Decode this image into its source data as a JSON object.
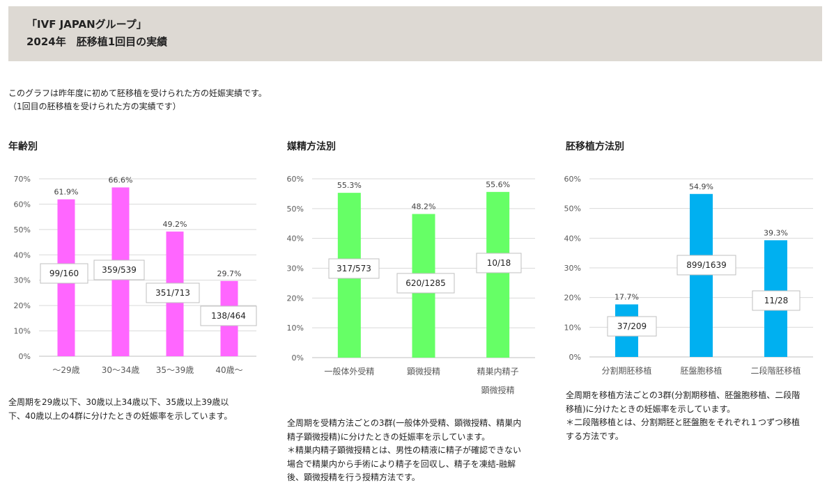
{
  "header": {
    "line1": "「IVF JAPANグループ」",
    "line2": "2024年　胚移植1回目の実績"
  },
  "intro": {
    "line1": "このグラフは昨年度に初めて胚移植を受けられた方の妊娠実績です。",
    "line2": "（1回目の胚移植を受けられた方の実績です）"
  },
  "sections": [
    {
      "title": "年齢別",
      "description": [
        "全周期を29歳以下、30歳以上34歳以下、35歳以上39歳以",
        "下、40歳以上の4群に分けたときの妊娠率を示しています。"
      ]
    },
    {
      "title": "媒精方法別",
      "description": [
        "全周期を受精方法ごとの3群(一般体外受精、顕微授精、精巣内",
        "精子顕微授精)に分けたときの妊娠率を示しています。",
        "＊精巣内精子顕微授精とは、男性の精液に精子が確認できない",
        "場合で精巣内から手術により精子を回収し、精子を凍結-融解",
        "後、顕微授精を行う授精方法です。"
      ]
    },
    {
      "title": "胚移植方法別",
      "description": [
        "全周期を移植方法ごとの3群(分割期移植、胚盤胞移植、二段階",
        "移植)に分けたときの妊娠率を示しています。",
        "＊二段階移植とは、分割期胚と胚盤胞をそれぞれ１つずつ移植",
        "する方法です。"
      ]
    }
  ],
  "chart_data": [
    {
      "type": "bar",
      "color": "#ff66ff",
      "ylim": [
        0,
        70
      ],
      "yticks": [
        "0%",
        "10%",
        "20%",
        "30%",
        "40%",
        "50%",
        "60%",
        "70%"
      ],
      "categories": [
        [
          "～29歳"
        ],
        [
          "30～34歳"
        ],
        [
          "35～39歳"
        ],
        [
          "40歳～"
        ]
      ],
      "values": [
        61.9,
        66.6,
        49.2,
        29.7
      ],
      "value_labels": [
        "61.9%",
        "66.6%",
        "49.2%",
        "29.7%"
      ],
      "count_labels": [
        "99/160",
        "359/539",
        "351/713",
        "138/464"
      ]
    },
    {
      "type": "bar",
      "color": "#66ff66",
      "ylim": [
        0,
        60
      ],
      "yticks": [
        "0%",
        "10%",
        "20%",
        "30%",
        "40%",
        "50%",
        "60%"
      ],
      "categories": [
        [
          "一般体外受精"
        ],
        [
          "顕微授精"
        ],
        [
          "精巣内精子",
          "顕微授精"
        ]
      ],
      "values": [
        55.3,
        48.2,
        55.6
      ],
      "value_labels": [
        "55.3%",
        "48.2%",
        "55.6%"
      ],
      "count_labels": [
        "317/573",
        "620/1285",
        "10/18"
      ]
    },
    {
      "type": "bar",
      "color": "#00b0f0",
      "ylim": [
        0,
        60
      ],
      "yticks": [
        "0%",
        "10%",
        "20%",
        "30%",
        "40%",
        "50%",
        "60%"
      ],
      "categories": [
        [
          "分割期胚移植"
        ],
        [
          "胚盤胞移植"
        ],
        [
          "二段階胚移植"
        ]
      ],
      "values": [
        17.7,
        54.9,
        39.3
      ],
      "value_labels": [
        "17.7%",
        "54.9%",
        "39.3%"
      ],
      "count_labels": [
        "37/209",
        "899/1639",
        "11/28"
      ]
    }
  ]
}
